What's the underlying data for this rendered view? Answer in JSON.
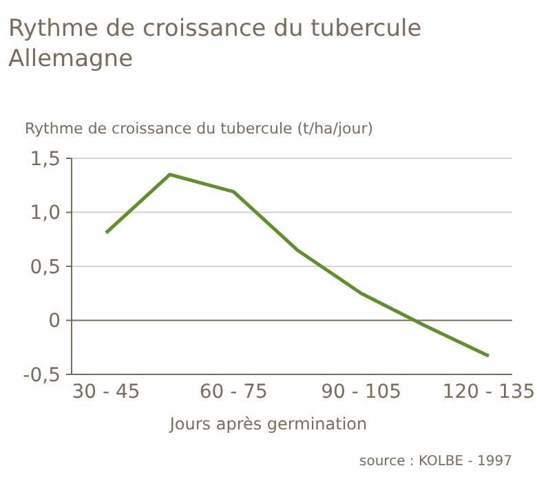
{
  "chart_data": {
    "type": "line",
    "title": "Rythme de croissance du tubercule",
    "subtitle": "Allemagne",
    "ylabel": "Rythme de croissance du tubercule (t/ha/jour)",
    "xlabel": "Jours après germination",
    "annotations": [
      "source : KOLBE - 1997"
    ],
    "categories": [
      "30 - 45",
      null,
      "60 - 75",
      null,
      "90 - 105",
      null,
      "120 - 135"
    ],
    "series": [
      {
        "color": "#5f8f2e",
        "values": [
          0.81,
          1.35,
          1.19,
          0.65,
          0.25,
          -0.05,
          -0.33
        ]
      }
    ],
    "ylim": [
      -0.5,
      1.5
    ],
    "yticks": [
      {
        "value": -0.5,
        "label": "-0,5"
      },
      {
        "value": 0,
        "label": "0"
      },
      {
        "value": 0.5,
        "label": "0,5"
      },
      {
        "value": 1,
        "label": "1,0"
      },
      {
        "value": 1.5,
        "label": "1,5"
      }
    ],
    "grid": "y",
    "marker": "none",
    "line_style": "solid"
  }
}
